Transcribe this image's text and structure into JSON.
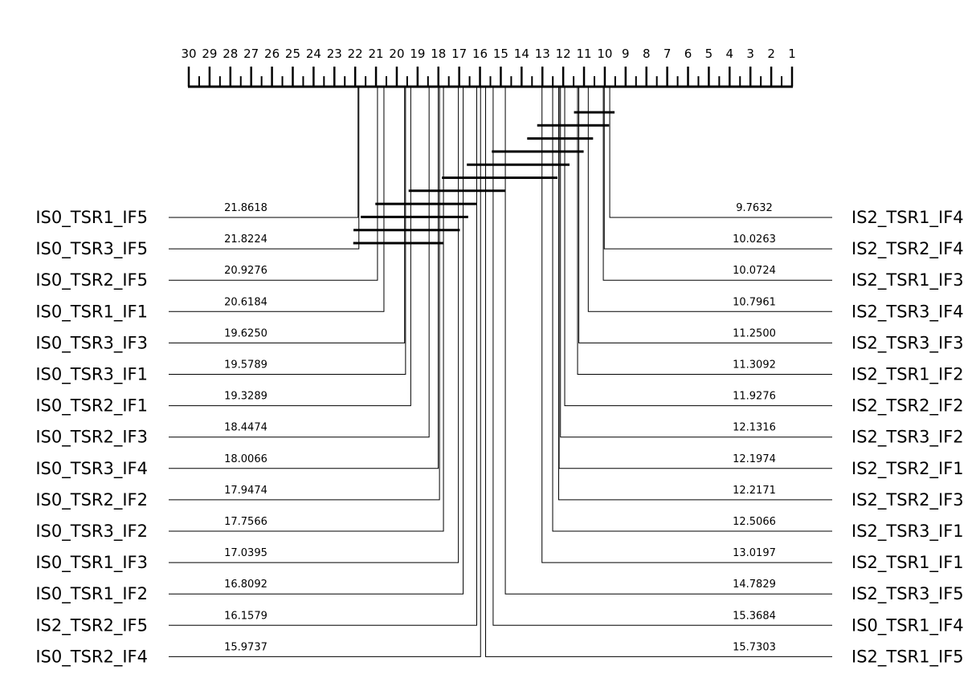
{
  "chart_data": {
    "type": "critical-difference",
    "axis": {
      "min": 1,
      "max": 30,
      "reversed": true,
      "tick_labels": [
        "30",
        "29",
        "28",
        "27",
        "26",
        "25",
        "24",
        "23",
        "22",
        "21",
        "20",
        "19",
        "18",
        "17",
        "16",
        "15",
        "14",
        "13",
        "12",
        "11",
        "10",
        "9",
        "8",
        "7",
        "6",
        "5",
        "4",
        "3",
        "2",
        "1"
      ]
    },
    "left": [
      {
        "name": "IS0_TSR1_IF5",
        "rank": 21.8618,
        "rank_label": "21.8618"
      },
      {
        "name": "IS0_TSR3_IF5",
        "rank": 21.8224,
        "rank_label": "21.8224"
      },
      {
        "name": "IS0_TSR2_IF5",
        "rank": 20.9276,
        "rank_label": "20.9276"
      },
      {
        "name": "IS0_TSR1_IF1",
        "rank": 20.6184,
        "rank_label": "20.6184"
      },
      {
        "name": "IS0_TSR3_IF3",
        "rank": 19.625,
        "rank_label": "19.6250"
      },
      {
        "name": "IS0_TSR3_IF1",
        "rank": 19.5789,
        "rank_label": "19.5789"
      },
      {
        "name": "IS0_TSR2_IF1",
        "rank": 19.3289,
        "rank_label": "19.3289"
      },
      {
        "name": "IS0_TSR2_IF3",
        "rank": 18.4474,
        "rank_label": "18.4474"
      },
      {
        "name": "IS0_TSR3_IF4",
        "rank": 18.0066,
        "rank_label": "18.0066"
      },
      {
        "name": "IS0_TSR2_IF2",
        "rank": 17.9474,
        "rank_label": "17.9474"
      },
      {
        "name": "IS0_TSR3_IF2",
        "rank": 17.7566,
        "rank_label": "17.7566"
      },
      {
        "name": "IS0_TSR1_IF3",
        "rank": 17.0395,
        "rank_label": "17.0395"
      },
      {
        "name": "IS0_TSR1_IF2",
        "rank": 16.8092,
        "rank_label": "16.8092"
      },
      {
        "name": "IS2_TSR2_IF5",
        "rank": 16.1579,
        "rank_label": "16.1579"
      },
      {
        "name": "IS0_TSR2_IF4",
        "rank": 15.9737,
        "rank_label": "15.9737"
      }
    ],
    "right": [
      {
        "name": "IS2_TSR1_IF4",
        "rank": 9.7632,
        "rank_label": "9.7632"
      },
      {
        "name": "IS2_TSR2_IF4",
        "rank": 10.0263,
        "rank_label": "10.0263"
      },
      {
        "name": "IS2_TSR1_IF3",
        "rank": 10.0724,
        "rank_label": "10.0724"
      },
      {
        "name": "IS2_TSR3_IF4",
        "rank": 10.7961,
        "rank_label": "10.7961"
      },
      {
        "name": "IS2_TSR3_IF3",
        "rank": 11.25,
        "rank_label": "11.2500"
      },
      {
        "name": "IS2_TSR1_IF2",
        "rank": 11.3092,
        "rank_label": "11.3092"
      },
      {
        "name": "IS2_TSR2_IF2",
        "rank": 11.9276,
        "rank_label": "11.9276"
      },
      {
        "name": "IS2_TSR3_IF2",
        "rank": 12.1316,
        "rank_label": "12.1316"
      },
      {
        "name": "IS2_TSR2_IF1",
        "rank": 12.1974,
        "rank_label": "12.1974"
      },
      {
        "name": "IS2_TSR2_IF3",
        "rank": 12.2171,
        "rank_label": "12.2171"
      },
      {
        "name": "IS2_TSR3_IF1",
        "rank": 12.5066,
        "rank_label": "12.5066"
      },
      {
        "name": "IS2_TSR1_IF1",
        "rank": 13.0197,
        "rank_label": "13.0197"
      },
      {
        "name": "IS2_TSR3_IF5",
        "rank": 14.7829,
        "rank_label": "14.7829"
      },
      {
        "name": "IS0_TSR1_IF4",
        "rank": 15.3684,
        "rank_label": "15.3684"
      },
      {
        "name": "IS2_TSR1_IF5",
        "rank": 15.7303,
        "rank_label": "15.7303"
      }
    ],
    "cliques": [
      [
        9.7632,
        11.25
      ],
      [
        10.0263,
        13.0197
      ],
      [
        10.7961,
        13.5
      ],
      [
        11.25,
        15.2
      ],
      [
        11.9276,
        16.4
      ],
      [
        12.5066,
        17.6
      ],
      [
        15.0,
        19.2
      ],
      [
        16.4,
        20.8
      ],
      [
        16.8,
        21.5
      ],
      [
        17.2,
        21.85
      ],
      [
        18.0066,
        21.8618
      ]
    ]
  }
}
